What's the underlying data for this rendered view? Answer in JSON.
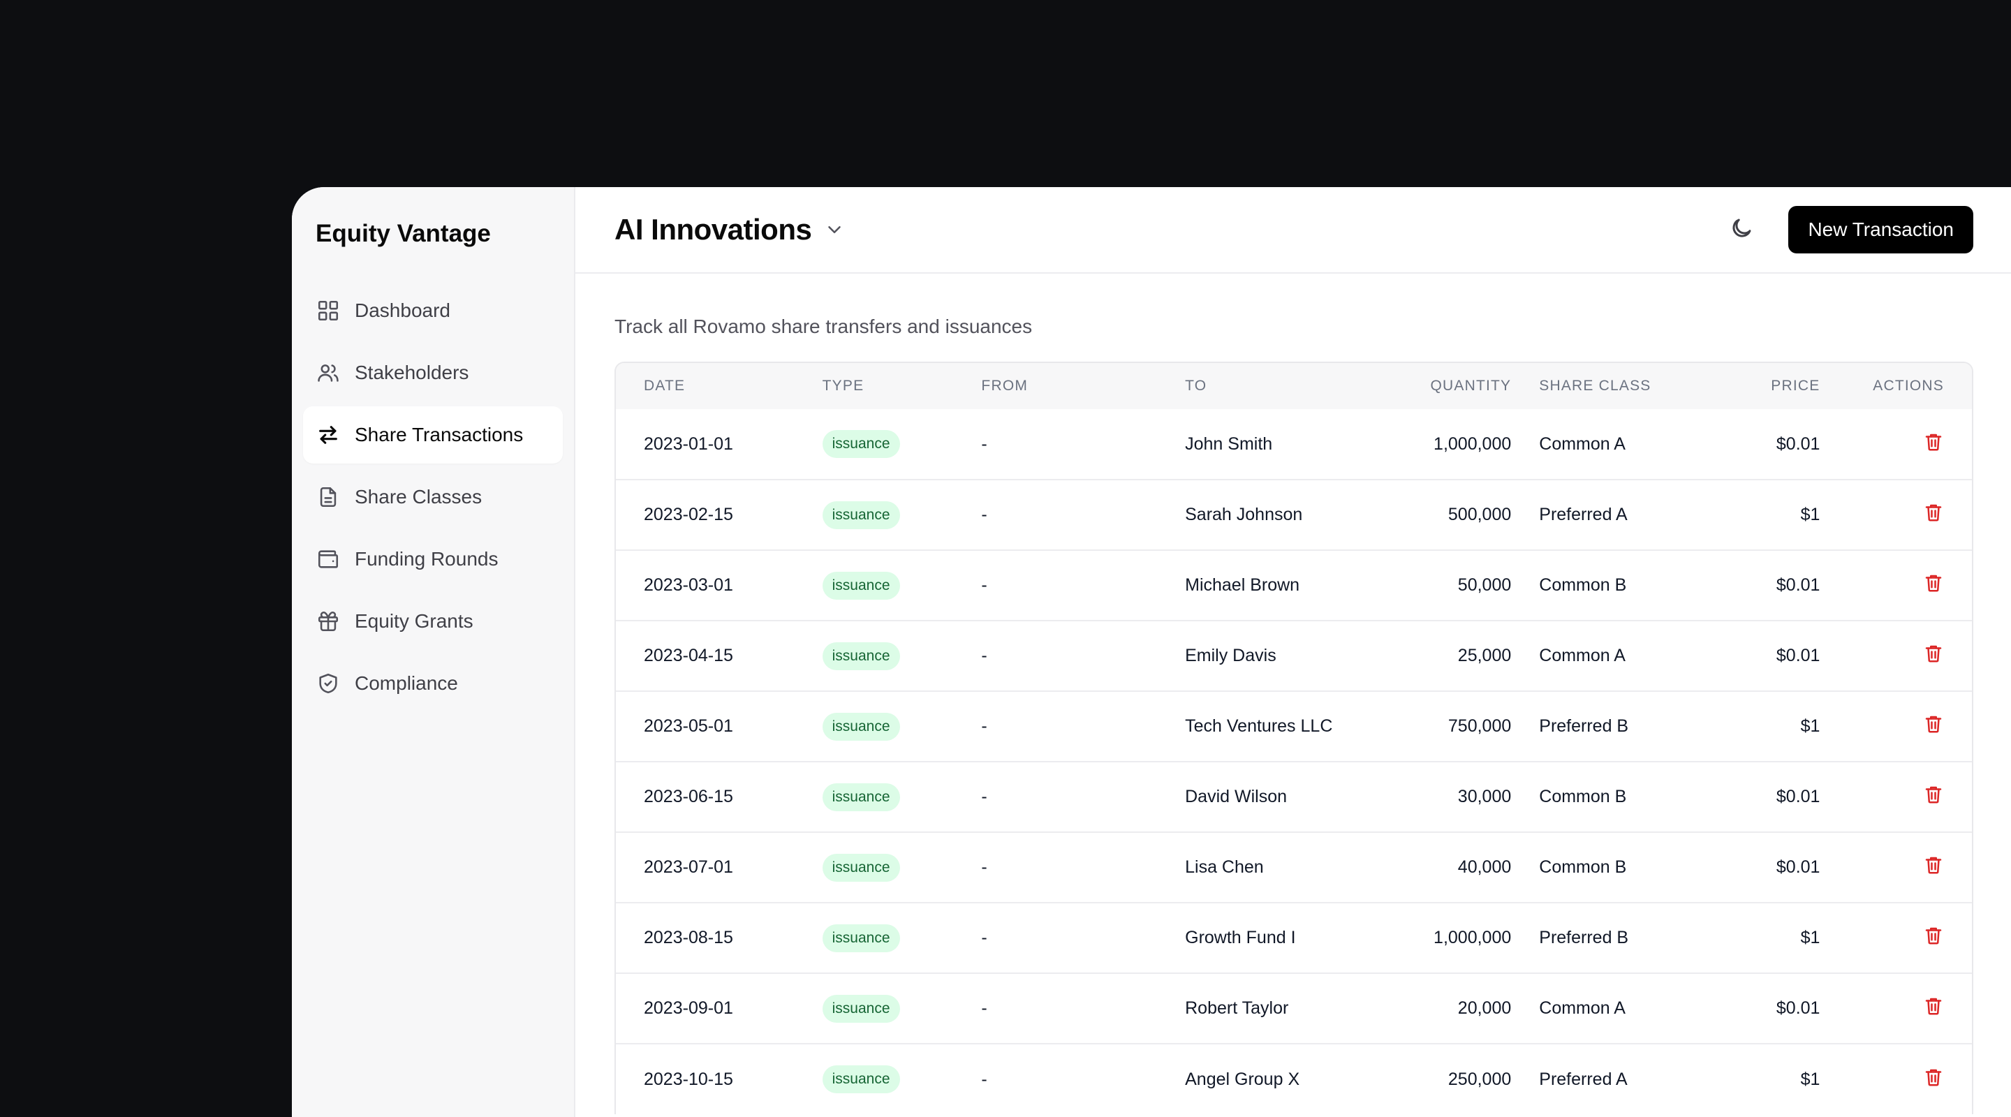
{
  "sidebar": {
    "brand": "Equity Vantage",
    "items": [
      {
        "label": "Dashboard",
        "icon": "grid-icon"
      },
      {
        "label": "Stakeholders",
        "icon": "users-icon"
      },
      {
        "label": "Share Transactions",
        "icon": "arrows-swap-icon",
        "active": true
      },
      {
        "label": "Share Classes",
        "icon": "file-icon"
      },
      {
        "label": "Funding Rounds",
        "icon": "wallet-icon"
      },
      {
        "label": "Equity Grants",
        "icon": "gift-icon"
      },
      {
        "label": "Compliance",
        "icon": "shield-check-icon"
      }
    ]
  },
  "header": {
    "company": "AI Innovations",
    "new_button": "New Transaction"
  },
  "main": {
    "subtitle": "Track all Rovamo share transfers and issuances"
  },
  "table": {
    "columns": [
      "DATE",
      "TYPE",
      "FROM",
      "TO",
      "QUANTITY",
      "SHARE CLASS",
      "PRICE",
      "ACTIONS"
    ],
    "rows": [
      {
        "date": "2023-01-01",
        "type": "issuance",
        "from": "-",
        "to": "John Smith",
        "quantity": "1,000,000",
        "share_class": "Common A",
        "price": "$0.01"
      },
      {
        "date": "2023-02-15",
        "type": "issuance",
        "from": "-",
        "to": "Sarah Johnson",
        "quantity": "500,000",
        "share_class": "Preferred A",
        "price": "$1"
      },
      {
        "date": "2023-03-01",
        "type": "issuance",
        "from": "-",
        "to": "Michael Brown",
        "quantity": "50,000",
        "share_class": "Common B",
        "price": "$0.01"
      },
      {
        "date": "2023-04-15",
        "type": "issuance",
        "from": "-",
        "to": "Emily Davis",
        "quantity": "25,000",
        "share_class": "Common A",
        "price": "$0.01"
      },
      {
        "date": "2023-05-01",
        "type": "issuance",
        "from": "-",
        "to": "Tech Ventures LLC",
        "quantity": "750,000",
        "share_class": "Preferred B",
        "price": "$1"
      },
      {
        "date": "2023-06-15",
        "type": "issuance",
        "from": "-",
        "to": "David Wilson",
        "quantity": "30,000",
        "share_class": "Common B",
        "price": "$0.01"
      },
      {
        "date": "2023-07-01",
        "type": "issuance",
        "from": "-",
        "to": "Lisa Chen",
        "quantity": "40,000",
        "share_class": "Common B",
        "price": "$0.01"
      },
      {
        "date": "2023-08-15",
        "type": "issuance",
        "from": "-",
        "to": "Growth Fund I",
        "quantity": "1,000,000",
        "share_class": "Preferred B",
        "price": "$1"
      },
      {
        "date": "2023-09-01",
        "type": "issuance",
        "from": "-",
        "to": "Robert Taylor",
        "quantity": "20,000",
        "share_class": "Common A",
        "price": "$0.01"
      },
      {
        "date": "2023-10-15",
        "type": "issuance",
        "from": "-",
        "to": "Angel Group X",
        "quantity": "250,000",
        "share_class": "Preferred A",
        "price": "$1"
      }
    ]
  },
  "colors": {
    "background": "#0d0e11",
    "badge_bg": "#dcfce7",
    "badge_text": "#166534",
    "delete": "#dc2626",
    "primary_button": "#000000"
  }
}
